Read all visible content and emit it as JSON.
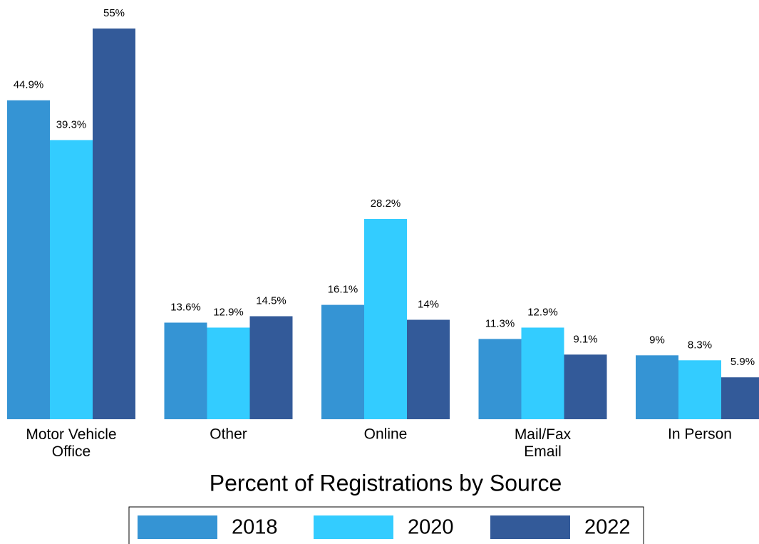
{
  "chart_data": {
    "type": "bar",
    "title": "Percent of Registrations by Source",
    "categories": [
      "Motor Vehicle\nOffice",
      "Other",
      "Online",
      "Mail/Fax\nEmail",
      "In Person"
    ],
    "series": [
      {
        "name": "2018",
        "color": "#3594d4",
        "values": [
          44.9,
          13.6,
          16.1,
          11.3,
          9
        ],
        "value_labels": [
          "44.9%",
          "13.6%",
          "16.1%",
          "11.3%",
          "9%"
        ]
      },
      {
        "name": "2020",
        "color": "#33ccff",
        "values": [
          39.3,
          12.9,
          28.2,
          12.9,
          8.3
        ],
        "value_labels": [
          "39.3%",
          "12.9%",
          "28.2%",
          "12.9%",
          "8.3%"
        ]
      },
      {
        "name": "2022",
        "color": "#335a99",
        "values": [
          55,
          14.5,
          14,
          9.1,
          5.9
        ],
        "value_labels": [
          "55%",
          "14.5%",
          "14%",
          "9.1%",
          "5.9%"
        ]
      }
    ],
    "ylim": [
      0,
      55
    ],
    "legend": "bottom"
  }
}
